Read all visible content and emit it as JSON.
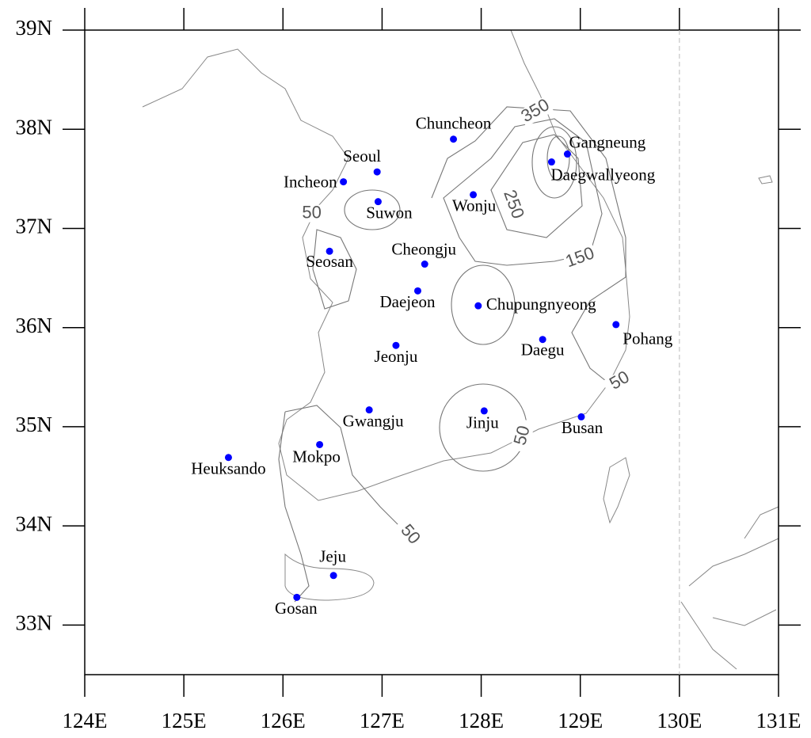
{
  "chart_data": {
    "type": "map",
    "xlim": [
      124,
      131
    ],
    "ylim": [
      32.5,
      39
    ],
    "xticks": [
      {
        "value": 124,
        "label": "124E"
      },
      {
        "value": 125,
        "label": "125E"
      },
      {
        "value": 126,
        "label": "126E"
      },
      {
        "value": 127,
        "label": "127E"
      },
      {
        "value": 128,
        "label": "128E"
      },
      {
        "value": 129,
        "label": "129E"
      },
      {
        "value": 130,
        "label": "130E"
      },
      {
        "value": 131,
        "label": "131E"
      }
    ],
    "yticks": [
      {
        "value": 33,
        "label": "33N"
      },
      {
        "value": 34,
        "label": "34N"
      },
      {
        "value": 35,
        "label": "35N"
      },
      {
        "value": 36,
        "label": "36N"
      },
      {
        "value": 37,
        "label": "37N"
      },
      {
        "value": 38,
        "label": "38N"
      },
      {
        "value": 39,
        "label": "39N"
      }
    ],
    "stations": {
      "color": "#0000ff",
      "names": [
        "Seoul",
        "Incheon",
        "Suwon",
        "Chuncheon",
        "Wonju",
        "Gangneung",
        "Daegwallyeong",
        "Seosan",
        "Cheongju",
        "Daejeon",
        "Chupungnyeong",
        "Pohang",
        "Daegu",
        "Jeonju",
        "Gwangju",
        "Jinju",
        "Busan",
        "Mokpo",
        "Heuksando",
        "Jeju",
        "Gosan"
      ],
      "lon": [
        126.95,
        126.61,
        126.96,
        127.72,
        127.92,
        128.87,
        128.71,
        126.47,
        127.43,
        127.36,
        127.97,
        129.36,
        128.62,
        127.14,
        126.87,
        128.03,
        129.01,
        126.37,
        125.45,
        126.51,
        126.14
      ],
      "lat": [
        37.57,
        37.47,
        37.27,
        37.9,
        37.34,
        37.75,
        37.67,
        36.77,
        36.64,
        36.37,
        36.22,
        36.03,
        35.88,
        35.82,
        35.17,
        35.16,
        35.1,
        34.82,
        34.69,
        33.5,
        33.28
      ]
    },
    "contour_labels": {
      "color": "#555555",
      "values": [
        350,
        250,
        150,
        50,
        50,
        50,
        50
      ],
      "lon": [
        128.55,
        128.32,
        129.0,
        126.29,
        129.4,
        128.42,
        127.28
      ],
      "lat": [
        38.18,
        37.24,
        36.7,
        37.15,
        35.46,
        34.91,
        33.91
      ]
    }
  }
}
